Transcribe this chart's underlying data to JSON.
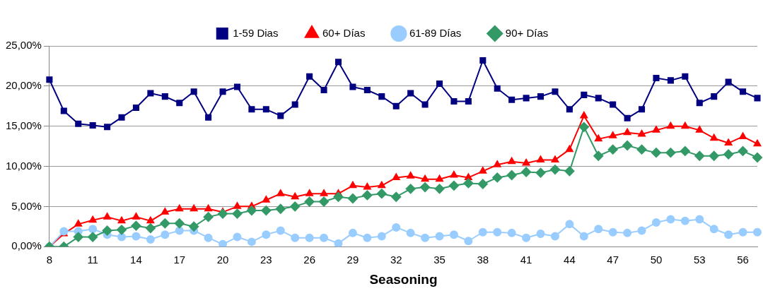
{
  "chart_data": {
    "type": "line",
    "xlabel": "Seasoning",
    "categories": [
      "8",
      null,
      null,
      "11",
      null,
      null,
      "14",
      null,
      null,
      "17",
      null,
      null,
      "20",
      null,
      null,
      "23",
      null,
      null,
      "26",
      null,
      null,
      "29",
      null,
      null,
      "32",
      null,
      null,
      "35",
      null,
      null,
      "38",
      null,
      null,
      "41",
      null,
      null,
      "44",
      null,
      null,
      "47",
      null,
      null,
      "50",
      null,
      null,
      "53",
      null,
      null,
      "56",
      null
    ],
    "series": [
      {
        "name": "1-59 Dias",
        "color": "#000080",
        "marker": "square",
        "values": [
          20.8,
          16.9,
          15.3,
          15.1,
          14.9,
          16.1,
          17.3,
          19.1,
          18.7,
          17.9,
          19.3,
          16.1,
          19.3,
          19.9,
          17.1,
          17.1,
          16.3,
          17.7,
          21.2,
          19.5,
          23.0,
          19.9,
          19.5,
          18.7,
          17.5,
          19.1,
          17.7,
          20.3,
          18.1,
          18.1,
          23.2,
          19.7,
          18.3,
          18.5,
          18.7,
          19.3,
          17.1,
          18.9,
          18.5,
          17.7,
          16.0,
          17.1,
          21.0,
          20.7,
          21.2,
          17.9,
          18.7,
          20.5,
          19.3,
          18.5
        ]
      },
      {
        "name": "60+ Días",
        "color": "#ff0000",
        "marker": "triangle",
        "values": [
          0,
          1.6,
          2.8,
          3.3,
          3.7,
          3.2,
          3.7,
          3.2,
          4.3,
          4.7,
          4.7,
          4.7,
          4.3,
          5.0,
          5.0,
          5.8,
          6.6,
          6.2,
          6.6,
          6.6,
          6.6,
          7.6,
          7.4,
          7.6,
          8.6,
          8.8,
          8.4,
          8.4,
          8.9,
          8.6,
          9.4,
          10.2,
          10.6,
          10.4,
          10.8,
          10.8,
          12.1,
          16.3,
          13.4,
          13.8,
          14.2,
          14.0,
          14.5,
          15.0,
          15.0,
          14.5,
          13.5,
          12.9,
          13.7,
          12.8
        ]
      },
      {
        "name": "61-89 Días",
        "color": "#99ccff",
        "marker": "circle",
        "values": [
          0,
          1.9,
          1.9,
          2.2,
          1.5,
          1.2,
          1.3,
          0.9,
          1.5,
          2.0,
          2.0,
          1.1,
          0.3,
          1.2,
          0.6,
          1.5,
          2.0,
          1.1,
          1.1,
          1.1,
          0.4,
          1.7,
          1.1,
          1.3,
          2.4,
          1.7,
          1.1,
          1.3,
          1.5,
          0.7,
          1.8,
          1.8,
          1.7,
          1.1,
          1.6,
          1.3,
          2.8,
          1.3,
          2.2,
          1.8,
          1.7,
          2.0,
          3.0,
          3.4,
          3.2,
          3.4,
          2.2,
          1.5,
          1.8,
          1.8
        ]
      },
      {
        "name": "90+ Días",
        "color": "#339966",
        "marker": "diamond",
        "values": [
          0,
          0,
          1.2,
          1.2,
          2.0,
          2.1,
          2.6,
          2.3,
          2.9,
          2.9,
          2.5,
          3.7,
          4.1,
          4.1,
          4.5,
          4.5,
          4.7,
          5.0,
          5.6,
          5.6,
          6.2,
          6.0,
          6.4,
          6.6,
          6.2,
          7.2,
          7.4,
          7.2,
          7.6,
          7.9,
          7.8,
          8.6,
          8.9,
          9.3,
          9.2,
          9.6,
          9.4,
          14.9,
          11.3,
          12.1,
          12.6,
          12.1,
          11.7,
          11.7,
          11.9,
          11.3,
          11.3,
          11.5,
          11.9,
          11.1
        ]
      }
    ],
    "ylim": [
      0,
      25
    ],
    "yticks": [
      {
        "value": 0,
        "label": "0,00%"
      },
      {
        "value": 5,
        "label": "5,00%"
      },
      {
        "value": 10,
        "label": "10,00%"
      },
      {
        "value": 15,
        "label": "15,00%"
      },
      {
        "value": 20,
        "label": "20,00%"
      },
      {
        "value": 25,
        "label": "25,00%"
      }
    ],
    "grid": "y",
    "legend": "top",
    "line_style": "solid"
  }
}
